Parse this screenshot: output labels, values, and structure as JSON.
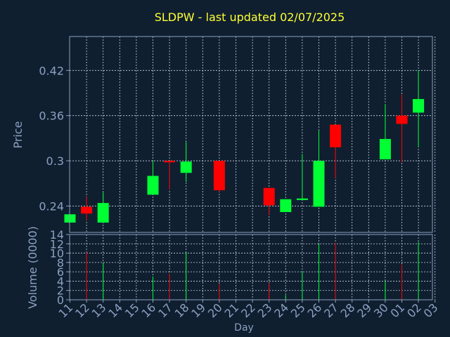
{
  "chart_data": {
    "type": "candlestick",
    "title": "SLDPW - last updated 02/07/2025",
    "xlabel": "Day",
    "price_panel": {
      "ylabel": "Price",
      "yticks": [
        "0.24",
        "0.3",
        "0.36",
        "0.42"
      ],
      "ylim": [
        0.205,
        0.465
      ]
    },
    "volume_panel": {
      "ylabel": "Volume (0000)",
      "yticks": [
        "0",
        "2",
        "4",
        "6",
        "8",
        "10",
        "12",
        "14"
      ],
      "ylim": [
        0,
        14
      ]
    },
    "x_tick_labels": [
      "11",
      "12",
      "13",
      "14",
      "15",
      "16",
      "17",
      "18",
      "19",
      "20",
      "21",
      "22",
      "23",
      "24",
      "25",
      "26",
      "27",
      "28",
      "29",
      "30",
      "01",
      "02",
      "03"
    ],
    "candles": [
      {
        "day": "11",
        "open": 0.218,
        "close": 0.229,
        "high": 0.229,
        "low": 0.218,
        "volume": 0
      },
      {
        "day": "12",
        "open": 0.239,
        "close": 0.23,
        "high": 0.252,
        "low": 0.221,
        "volume": 10.2
      },
      {
        "day": "13",
        "open": 0.218,
        "close": 0.244,
        "high": 0.258,
        "low": 0.218,
        "volume": 8.0
      },
      {
        "day": "16",
        "open": 0.255,
        "close": 0.28,
        "high": 0.3,
        "low": 0.255,
        "volume": 5.0
      },
      {
        "day": "17",
        "open": 0.3,
        "close": 0.298,
        "high": 0.3,
        "low": 0.262,
        "volume": 5.6
      },
      {
        "day": "18",
        "open": 0.284,
        "close": 0.299,
        "high": 0.325,
        "low": 0.272,
        "volume": 10.2
      },
      {
        "day": "20",
        "open": 0.3,
        "close": 0.261,
        "high": 0.3,
        "low": 0.259,
        "volume": 3.4
      },
      {
        "day": "23",
        "open": 0.264,
        "close": 0.241,
        "high": 0.264,
        "low": 0.228,
        "volume": 3.6
      },
      {
        "day": "24",
        "open": 0.232,
        "close": 0.249,
        "high": 0.249,
        "low": 0.232,
        "volume": 1.0
      },
      {
        "day": "25",
        "open": 0.248,
        "close": 0.25,
        "high": 0.309,
        "low": 0.248,
        "volume": 6.1
      },
      {
        "day": "26",
        "open": 0.239,
        "close": 0.3,
        "high": 0.34,
        "low": 0.239,
        "volume": 12.0
      },
      {
        "day": "27",
        "open": 0.348,
        "close": 0.318,
        "high": 0.348,
        "low": 0.277,
        "volume": 12.2
      },
      {
        "day": "30",
        "open": 0.302,
        "close": 0.329,
        "high": 0.375,
        "low": 0.302,
        "volume": 4.0
      },
      {
        "day": "01",
        "open": 0.36,
        "close": 0.349,
        "high": 0.388,
        "low": 0.298,
        "volume": 7.6
      },
      {
        "day": "02",
        "open": 0.364,
        "close": 0.382,
        "high": 0.42,
        "low": 0.318,
        "volume": 12.4
      }
    ],
    "colors": {
      "background": "#0f1f30",
      "axes": "#8ca0c0",
      "grid": "#c8d4e4",
      "title": "#ffff33",
      "label": "#8ca0c0",
      "up": "#00ff33",
      "down": "#ff0000"
    },
    "grid": true
  }
}
